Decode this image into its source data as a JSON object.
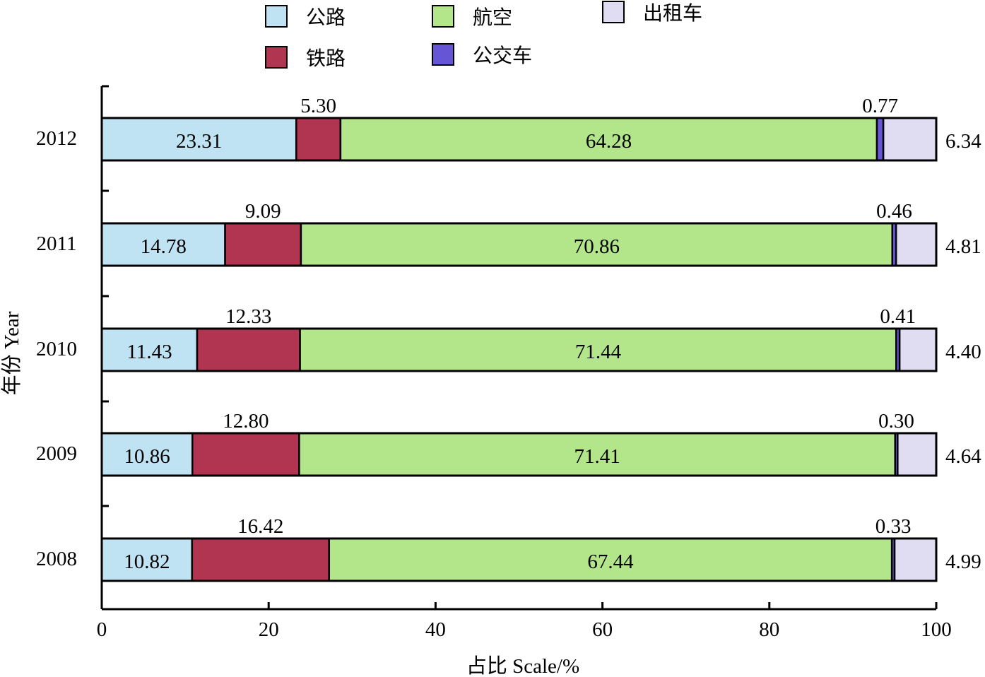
{
  "chart_data": {
    "type": "bar",
    "orientation": "horizontal",
    "stacked": true,
    "categories": [
      "2012",
      "2011",
      "2010",
      "2009",
      "2008"
    ],
    "series": [
      {
        "name": "公路",
        "color": "#bfe3f3",
        "values": [
          23.31,
          14.78,
          11.43,
          10.86,
          10.82
        ]
      },
      {
        "name": "铁路",
        "color": "#b13450",
        "values": [
          5.3,
          9.09,
          12.33,
          12.8,
          16.42
        ]
      },
      {
        "name": "航空",
        "color": "#b3e68a",
        "values": [
          64.28,
          70.86,
          71.44,
          71.41,
          67.44
        ]
      },
      {
        "name": "公交车",
        "color": "#6656d6",
        "values": [
          0.77,
          0.46,
          0.41,
          0.3,
          0.33
        ]
      },
      {
        "name": "出租车",
        "color": "#e0ddf2",
        "values": [
          6.34,
          4.81,
          4.4,
          4.64,
          4.99
        ]
      }
    ],
    "data_labels": [
      [
        "23.31",
        "5.30",
        "64.28",
        "0.77",
        "6.34"
      ],
      [
        "14.78",
        "9.09",
        "70.86",
        "0.46",
        "4.81"
      ],
      [
        "11.43",
        "12.33",
        "71.44",
        "0.41",
        "4.40"
      ],
      [
        "10.86",
        "12.80",
        "71.41",
        "0.30",
        "4.64"
      ],
      [
        "10.82",
        "16.42",
        "67.44",
        "0.33",
        "4.99"
      ]
    ],
    "xlabel": "占比  Scale/%",
    "ylabel": "年份  Year",
    "xlim": [
      0,
      100
    ],
    "xticks": [
      "0",
      "20",
      "40",
      "60",
      "80",
      "100"
    ],
    "legend_position": "top",
    "grid": false
  }
}
